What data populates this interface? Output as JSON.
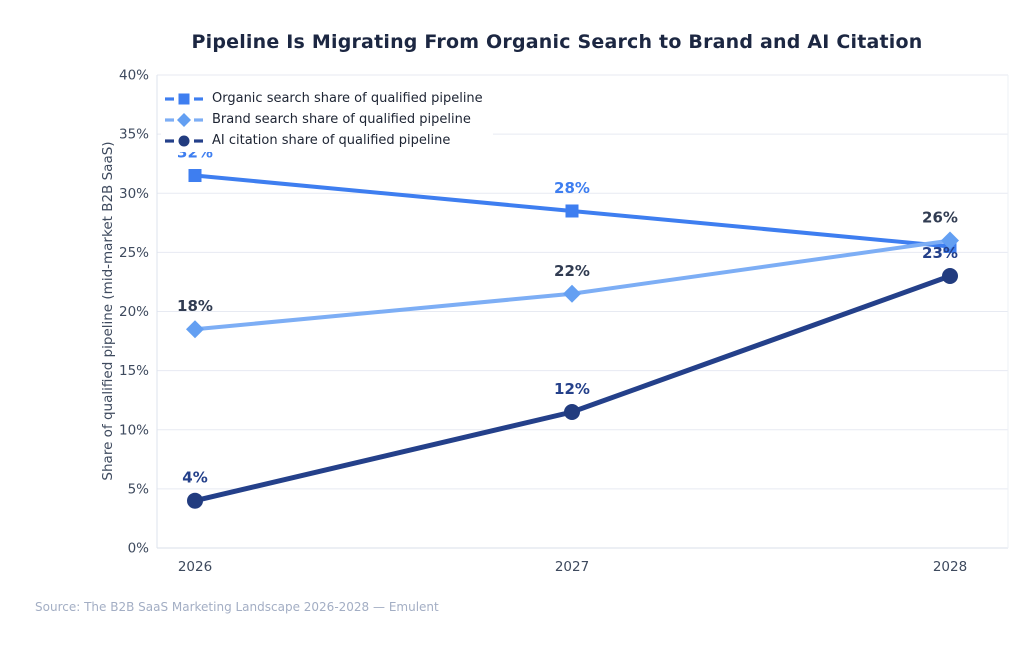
{
  "title": "Pipeline Is Migrating From Organic Search to Brand and AI Citation",
  "source": "Source: The B2B SaaS Marketing Landscape 2026-2028 — Emulent",
  "chart_data": {
    "type": "line",
    "title": "Pipeline Is Migrating From Organic Search to Brand and AI Citation",
    "xlabel": "",
    "ylabel": "Share of qualified pipeline (mid-market B2B SaaS)",
    "x": [
      "2026",
      "2027",
      "2028"
    ],
    "ylim": [
      0,
      40
    ],
    "ytick_step": 5,
    "ytick_labels": [
      "0%",
      "5%",
      "10%",
      "15%",
      "20%",
      "25%",
      "30%",
      "35%",
      "40%"
    ],
    "grid": true,
    "legend_position": "upper-left",
    "series": [
      {
        "id": "organic-search",
        "name": "Organic search share of qualified pipeline",
        "marker": "square",
        "color": "#3e7ef0",
        "label_color": "#3e7ef0",
        "line_width": 4,
        "values": [
          31.5,
          28.5,
          25.5
        ],
        "point_labels": [
          "32%",
          "28%",
          ""
        ]
      },
      {
        "id": "brand-search",
        "name": "Brand search share of qualified pipeline",
        "marker": "diamond",
        "color": "#7daef5",
        "marker_color": "#639ff2",
        "label_color": "#313c52",
        "line_width": 4,
        "values": [
          18.5,
          21.5,
          26
        ],
        "point_labels": [
          "18%",
          "22%",
          "26%"
        ]
      },
      {
        "id": "ai-citation",
        "name": "AI citation share of qualified pipeline",
        "marker": "circle",
        "color": "#24408a",
        "marker_color": "#223c7f",
        "label_color": "#24408a",
        "line_width": 5,
        "values": [
          4,
          11.5,
          23
        ],
        "point_labels": [
          "4%",
          "12%",
          "23%"
        ]
      }
    ]
  }
}
